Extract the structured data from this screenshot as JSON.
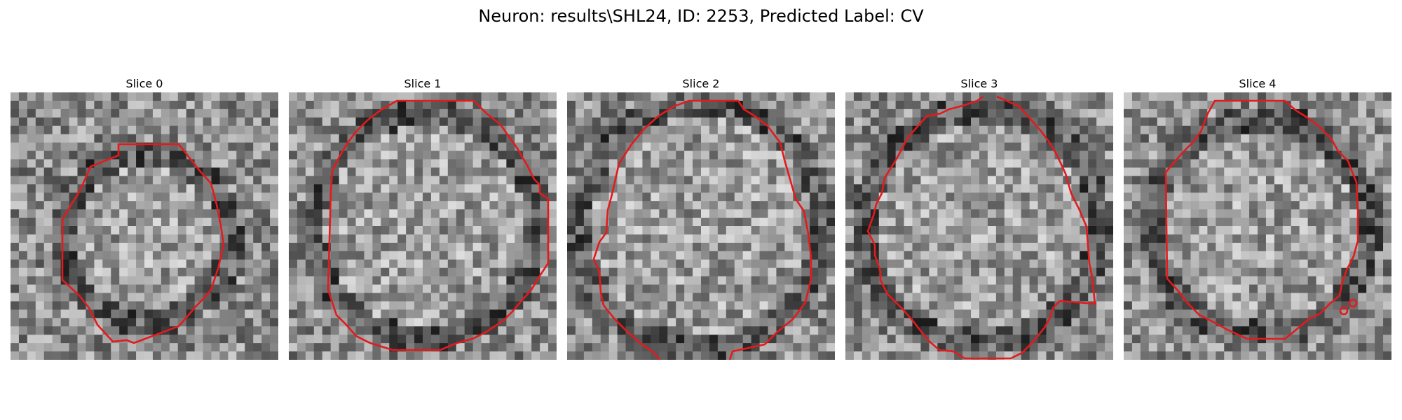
{
  "figure": {
    "title": "Neuron: results\\SHL24, ID: 2253, Predicted Label: CV"
  },
  "colors": {
    "contour": "#e41a1c",
    "pixel_dark": "#141414",
    "pixel_light": "#f2f2f2"
  },
  "slices": [
    {
      "label": "Slice 0"
    },
    {
      "label": "Slice 1"
    },
    {
      "label": "Slice 2"
    },
    {
      "label": "Slice 3"
    },
    {
      "label": "Slice 4"
    }
  ]
}
